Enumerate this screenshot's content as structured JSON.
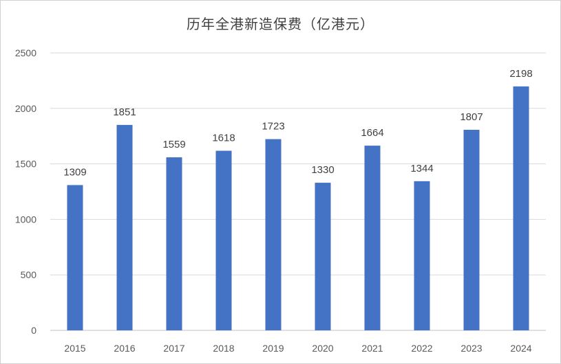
{
  "chart_data": {
    "type": "bar",
    "title": "历年全港新造保费（亿港元）",
    "categories": [
      "2015",
      "2016",
      "2017",
      "2018",
      "2019",
      "2020",
      "2021",
      "2022",
      "2023",
      "2024"
    ],
    "values": [
      1309,
      1851,
      1559,
      1618,
      1723,
      1330,
      1664,
      1344,
      1807,
      2198
    ],
    "data_labels": [
      "1309",
      "1851",
      "1559",
      "1618",
      "1723",
      "1330",
      "1664",
      "1344",
      "1807",
      "2198"
    ],
    "yticks": [
      "0",
      "500",
      "1000",
      "1500",
      "2000",
      "2500"
    ],
    "ylim": [
      0,
      2500
    ],
    "xlabel": "",
    "ylabel": "",
    "grid": true,
    "bar_color": "#4472C4",
    "gridline_color": "#d9d9d9"
  }
}
